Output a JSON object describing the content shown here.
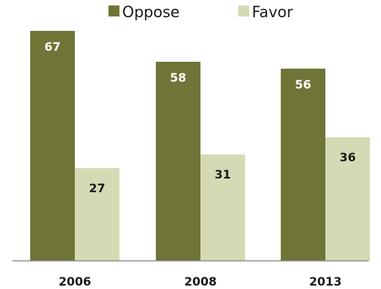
{
  "chart_data": {
    "type": "bar",
    "categories": [
      "2006",
      "2008",
      "2013"
    ],
    "series": [
      {
        "name": "Oppose",
        "values": [
          67,
          58,
          56
        ],
        "color": "#6f7536",
        "label_color": "#ffffff"
      },
      {
        "name": "Favor",
        "values": [
          27,
          31,
          36
        ],
        "color": "#d6dab4",
        "label_color": "#1a1a1a"
      }
    ],
    "title": "",
    "xlabel": "",
    "ylabel": "",
    "ylim": [
      0,
      70
    ],
    "grid": false,
    "legend_position": "top-center"
  }
}
